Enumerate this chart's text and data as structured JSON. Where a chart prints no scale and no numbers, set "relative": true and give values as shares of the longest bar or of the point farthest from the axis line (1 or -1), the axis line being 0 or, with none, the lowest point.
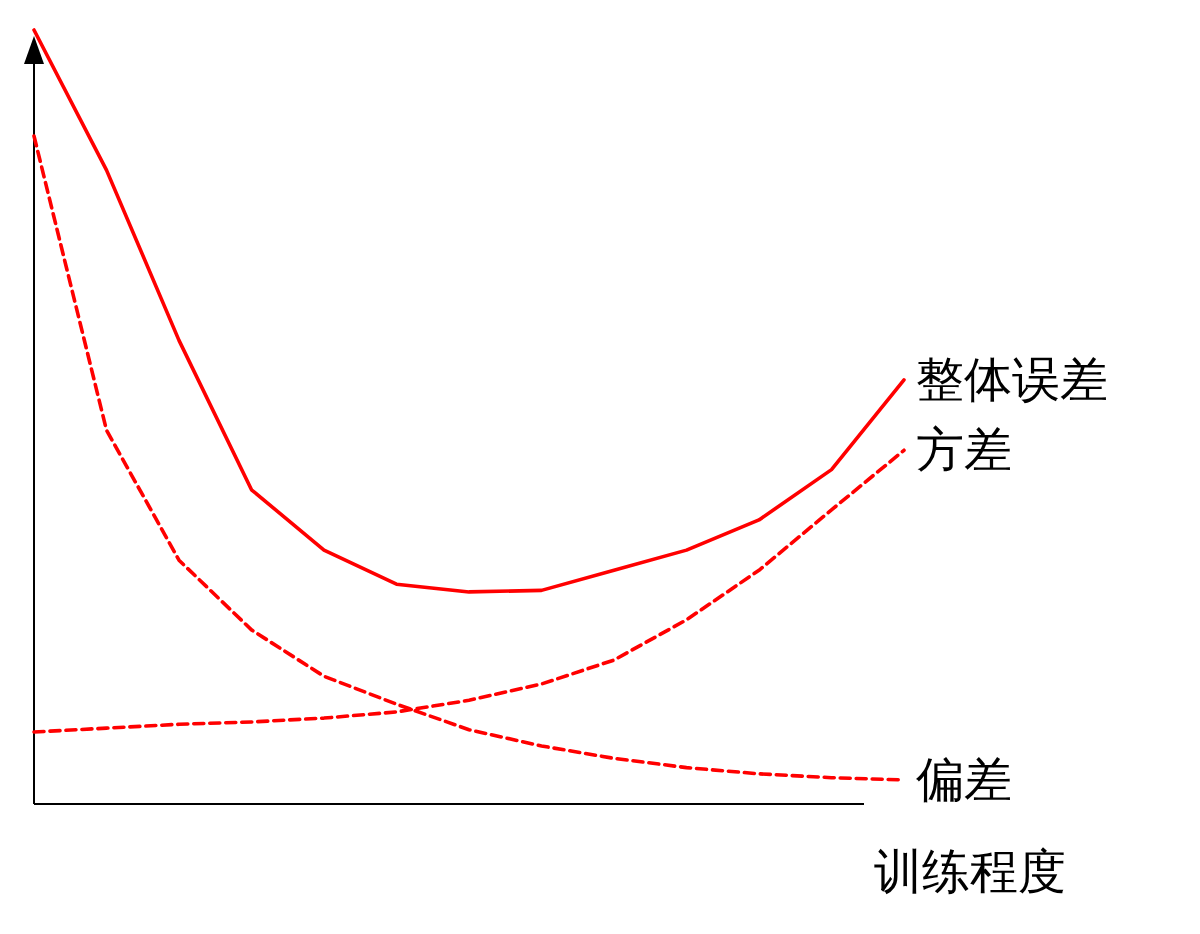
{
  "chart_data": {
    "type": "line",
    "relative": true,
    "xlabel": "训练程度",
    "categories": [
      null,
      null,
      null,
      null,
      null,
      null,
      null,
      null,
      null,
      null,
      null,
      null,
      null
    ],
    "series": [
      {
        "name": "整体误差",
        "color": "#ff0000",
        "line_style": "solid",
        "values": [
          1,
          0.819,
          0.599,
          0.406,
          0.328,
          0.284,
          0.274,
          0.276,
          0.302,
          0.328,
          0.367,
          0.432,
          0.548
        ]
      },
      {
        "name": "方差",
        "color": "#ff0000",
        "line_style": "dashed",
        "values": [
          0.093,
          0.098,
          0.103,
          0.106,
          0.111,
          0.119,
          0.134,
          0.155,
          0.186,
          0.238,
          0.302,
          0.38,
          0.457
        ]
      },
      {
        "name": "偏差",
        "color": "#ff0000",
        "line_style": "dashed",
        "values": [
          0.863,
          0.483,
          0.315,
          0.225,
          0.165,
          0.129,
          0.096,
          0.075,
          0.059,
          0.047,
          0.039,
          0.034,
          0.031
        ]
      }
    ]
  }
}
